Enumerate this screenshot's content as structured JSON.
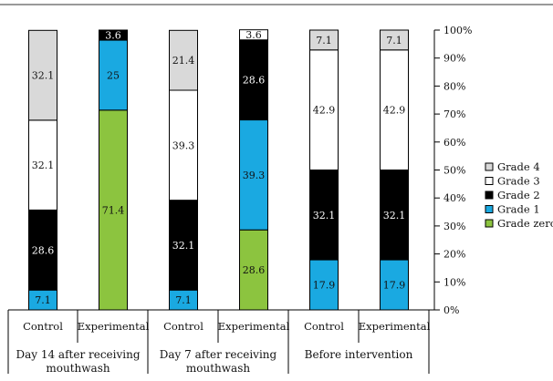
{
  "chart_data": {
    "type": "bar",
    "stacked": true,
    "groups": [
      {
        "label_lines": [
          "Day 14 after receiving",
          "mouthwash"
        ],
        "categories": [
          "Control",
          "Experimental"
        ]
      },
      {
        "label_lines": [
          "Day 7 after receiving",
          "mouthwash"
        ],
        "categories": [
          "Control",
          "Experimental"
        ]
      },
      {
        "label_lines": [
          "Before intervention"
        ],
        "categories": [
          "Control",
          "Experimental"
        ]
      }
    ],
    "categories": [
      "Control",
      "Experimental",
      "Control",
      "Experimental",
      "Control",
      "Experimental"
    ],
    "series": [
      {
        "name": "Grade zero",
        "color": "#8cc43f",
        "values": [
          0,
          71.4,
          0,
          28.6,
          0,
          0
        ]
      },
      {
        "name": "Grade 1",
        "color": "#1aa9e1",
        "values": [
          7.1,
          25,
          7.1,
          39.3,
          17.9,
          17.9
        ]
      },
      {
        "name": "Grade 2",
        "color": "#000000",
        "values": [
          28.6,
          3.6,
          32.1,
          28.6,
          32.1,
          32.1
        ]
      },
      {
        "name": "Grade 3",
        "color": "#ffffff",
        "values": [
          32.1,
          0,
          39.3,
          3.6,
          42.9,
          42.9
        ]
      },
      {
        "name": "Grade 4",
        "color": "#d9d9d9",
        "values": [
          32.1,
          0,
          21.4,
          0,
          7.1,
          7.1
        ]
      }
    ],
    "ylim": [
      0,
      100
    ],
    "yticks": [
      "0%",
      "10%",
      "20%",
      "30%",
      "40%",
      "50%",
      "60%",
      "70%",
      "80%",
      "90%",
      "100%"
    ],
    "yaxis_position": "right",
    "legend_position": "right",
    "legend_order": [
      "Grade 4",
      "Grade 3",
      "Grade 2",
      "Grade 1",
      "Grade zero"
    ],
    "grid": false
  }
}
